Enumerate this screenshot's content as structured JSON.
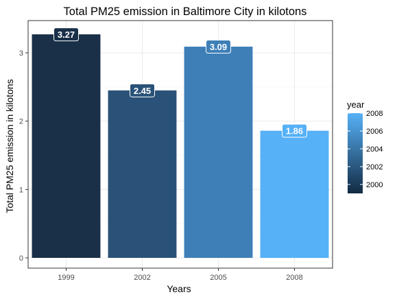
{
  "chart_data": {
    "type": "bar",
    "title": "Total PM25 emission in Baltimore City in kilotons",
    "xlabel": "Years",
    "ylabel": "Total PM25 emission in kilotons",
    "categories": [
      "1999",
      "2002",
      "2005",
      "2008"
    ],
    "values": [
      3.27,
      2.45,
      3.09,
      1.86
    ],
    "data_labels": [
      "3.27",
      "2.45",
      "3.09",
      "1.86"
    ],
    "bar_colors": [
      "#1a2f48",
      "#2a5278",
      "#3e7fb7",
      "#56b1f7"
    ],
    "ylim": [
      0,
      3.43
    ],
    "y_ticks": [
      0,
      1,
      2,
      3
    ],
    "grid": true,
    "legend": {
      "title": "year",
      "position": "right",
      "color_low": "#132b43",
      "color_high": "#56b1f7",
      "range": [
        1999,
        2008
      ],
      "breaks": [
        2000,
        2002,
        2004,
        2006,
        2008
      ]
    }
  }
}
